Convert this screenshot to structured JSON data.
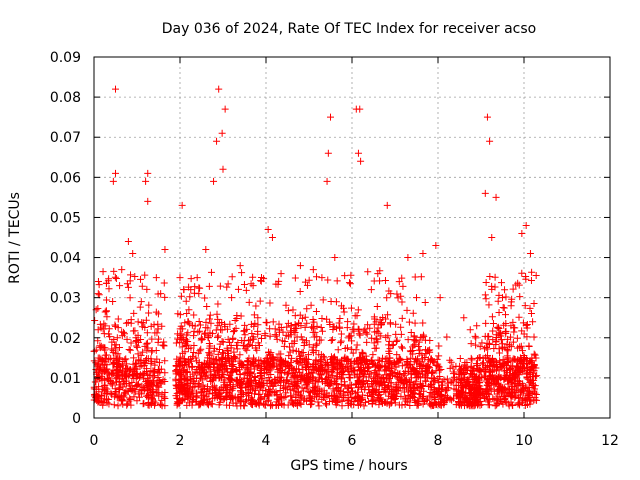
{
  "chart_data": {
    "type": "scatter",
    "title": "Day 036 of 2024, Rate Of TEC Index for receiver acso",
    "xlabel": "GPS time / hours",
    "ylabel": "ROTI / TECUs",
    "xlim": [
      0,
      12
    ],
    "ylim": [
      0,
      0.09
    ],
    "grid": true,
    "marker": "+",
    "color": "#ff0000",
    "x_ticks": [
      "0",
      "2",
      "4",
      "6",
      "8",
      "10",
      "12"
    ],
    "y_ticks": [
      "0",
      "0.01",
      "0.02",
      "0.03",
      "0.04",
      "0.05",
      "0.06",
      "0.07",
      "0.08",
      "0.09"
    ],
    "x_tick_values": [
      0,
      2,
      4,
      6,
      8,
      10,
      12
    ],
    "y_tick_values": [
      0,
      0.01,
      0.02,
      0.03,
      0.04,
      0.05,
      0.06,
      0.07,
      0.08,
      0.09
    ],
    "data_extent_hours": [
      0,
      10.3
    ],
    "points": [
      [
        0.5,
        0.082
      ],
      [
        2.9,
        0.082
      ],
      [
        6.1,
        0.077
      ],
      [
        6.18,
        0.077
      ],
      [
        3.05,
        0.077
      ],
      [
        2.98,
        0.071
      ],
      [
        2.85,
        0.069
      ],
      [
        5.5,
        0.075
      ],
      [
        9.15,
        0.075
      ],
      [
        9.2,
        0.069
      ],
      [
        6.15,
        0.066
      ],
      [
        5.45,
        0.066
      ],
      [
        6.2,
        0.064
      ],
      [
        1.25,
        0.061
      ],
      [
        0.5,
        0.061
      ],
      [
        0.45,
        0.059
      ],
      [
        1.2,
        0.059
      ],
      [
        2.78,
        0.059
      ],
      [
        5.42,
        0.059
      ],
      [
        3.0,
        0.062
      ],
      [
        9.1,
        0.056
      ],
      [
        9.35,
        0.055
      ],
      [
        2.05,
        0.053
      ],
      [
        6.82,
        0.053
      ],
      [
        1.25,
        0.054
      ],
      [
        4.05,
        0.047
      ],
      [
        4.15,
        0.045
      ],
      [
        10.05,
        0.048
      ],
      [
        9.95,
        0.046
      ],
      [
        9.25,
        0.045
      ],
      [
        1.65,
        0.042
      ],
      [
        0.8,
        0.044
      ],
      [
        0.9,
        0.041
      ],
      [
        3.4,
        0.038
      ],
      [
        2.6,
        0.042
      ],
      [
        7.95,
        0.043
      ],
      [
        7.65,
        0.041
      ],
      [
        7.3,
        0.04
      ],
      [
        5.6,
        0.04
      ],
      [
        10.15,
        0.041
      ],
      [
        0.1,
        0.031
      ],
      [
        0.05,
        0.027
      ],
      [
        1.55,
        0.031
      ],
      [
        1.45,
        0.035
      ],
      [
        4.35,
        0.036
      ],
      [
        4.8,
        0.038
      ],
      [
        5.1,
        0.037
      ],
      [
        5.3,
        0.035
      ],
      [
        6.45,
        0.032
      ],
      [
        6.6,
        0.036
      ],
      [
        6.9,
        0.031
      ],
      [
        7.1,
        0.034
      ],
      [
        7.5,
        0.03
      ],
      [
        8.05,
        0.03
      ],
      [
        8.6,
        0.025
      ],
      [
        8.75,
        0.022
      ],
      [
        8.9,
        0.023
      ],
      [
        9.5,
        0.03
      ],
      [
        9.7,
        0.028
      ],
      [
        10.2,
        0.024
      ],
      [
        3.7,
        0.033
      ],
      [
        3.2,
        0.03
      ],
      [
        2.4,
        0.035
      ],
      [
        2.25,
        0.032
      ],
      [
        1.95,
        0.026
      ],
      [
        1.1,
        0.029
      ]
    ]
  }
}
